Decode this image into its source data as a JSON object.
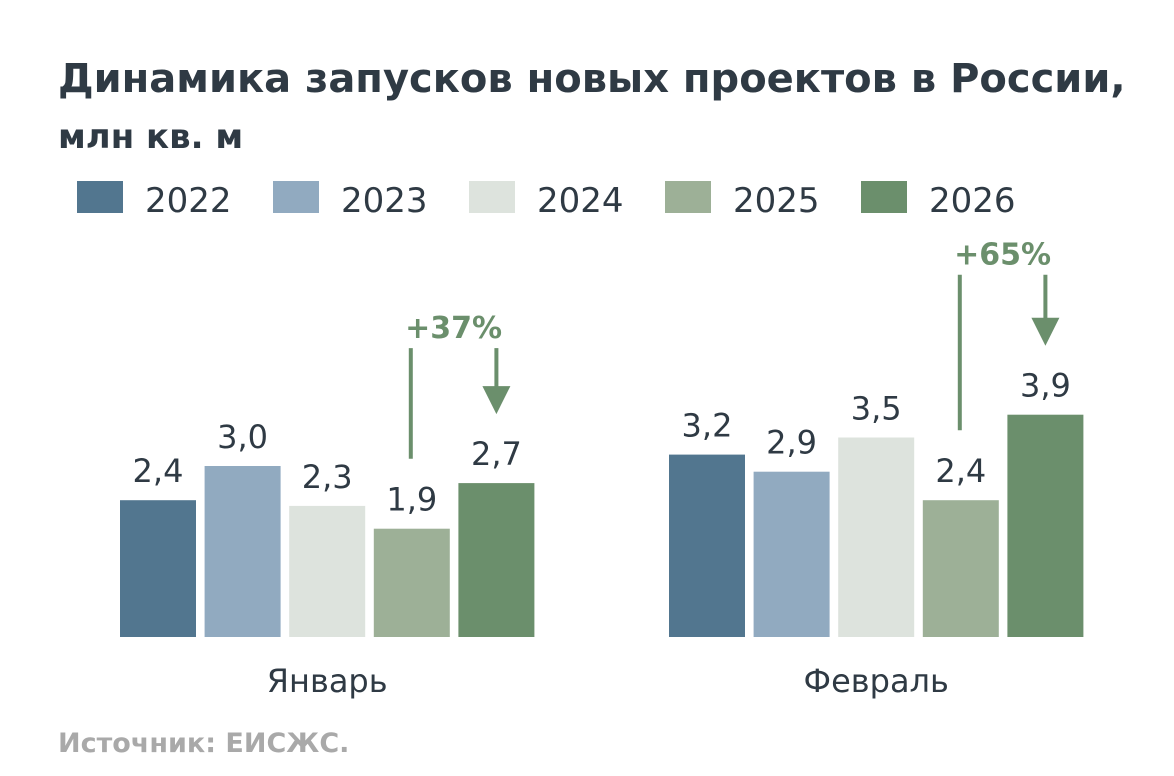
{
  "chart_data": {
    "type": "bar",
    "title": "Динамика запусков новых проектов в России,",
    "subtitle": "млн кв. м",
    "categories": [
      "Январь",
      "Февраль"
    ],
    "series": [
      {
        "name": "2022",
        "values": [
          2.4,
          3.2
        ],
        "labels": [
          "2,4",
          "3,2"
        ],
        "color": "#52768f"
      },
      {
        "name": "2023",
        "values": [
          3.0,
          2.9
        ],
        "labels": [
          "3,0",
          "2,9"
        ],
        "color": "#91aac0"
      },
      {
        "name": "2024",
        "values": [
          2.3,
          3.5
        ],
        "labels": [
          "2,3",
          "3,5"
        ],
        "color": "#dde3dd"
      },
      {
        "name": "2025",
        "values": [
          1.9,
          2.4
        ],
        "labels": [
          "1,9",
          "2,4"
        ],
        "color": "#9db097"
      },
      {
        "name": "2026",
        "values": [
          2.7,
          3.9
        ],
        "labels": [
          "2,7",
          "3,9"
        ],
        "color": "#6b8f6c"
      }
    ],
    "annotations": [
      {
        "category": "Январь",
        "text": "+37%",
        "from": "2025",
        "to": "2026"
      },
      {
        "category": "Февраль",
        "text": "+65%",
        "from": "2025",
        "to": "2026"
      }
    ],
    "annotation_color": "#6b8f6c",
    "ylim": [
      0,
      4
    ],
    "grid": false,
    "legend_position": "top-left",
    "source": "Источник: ЕИСЖС."
  }
}
